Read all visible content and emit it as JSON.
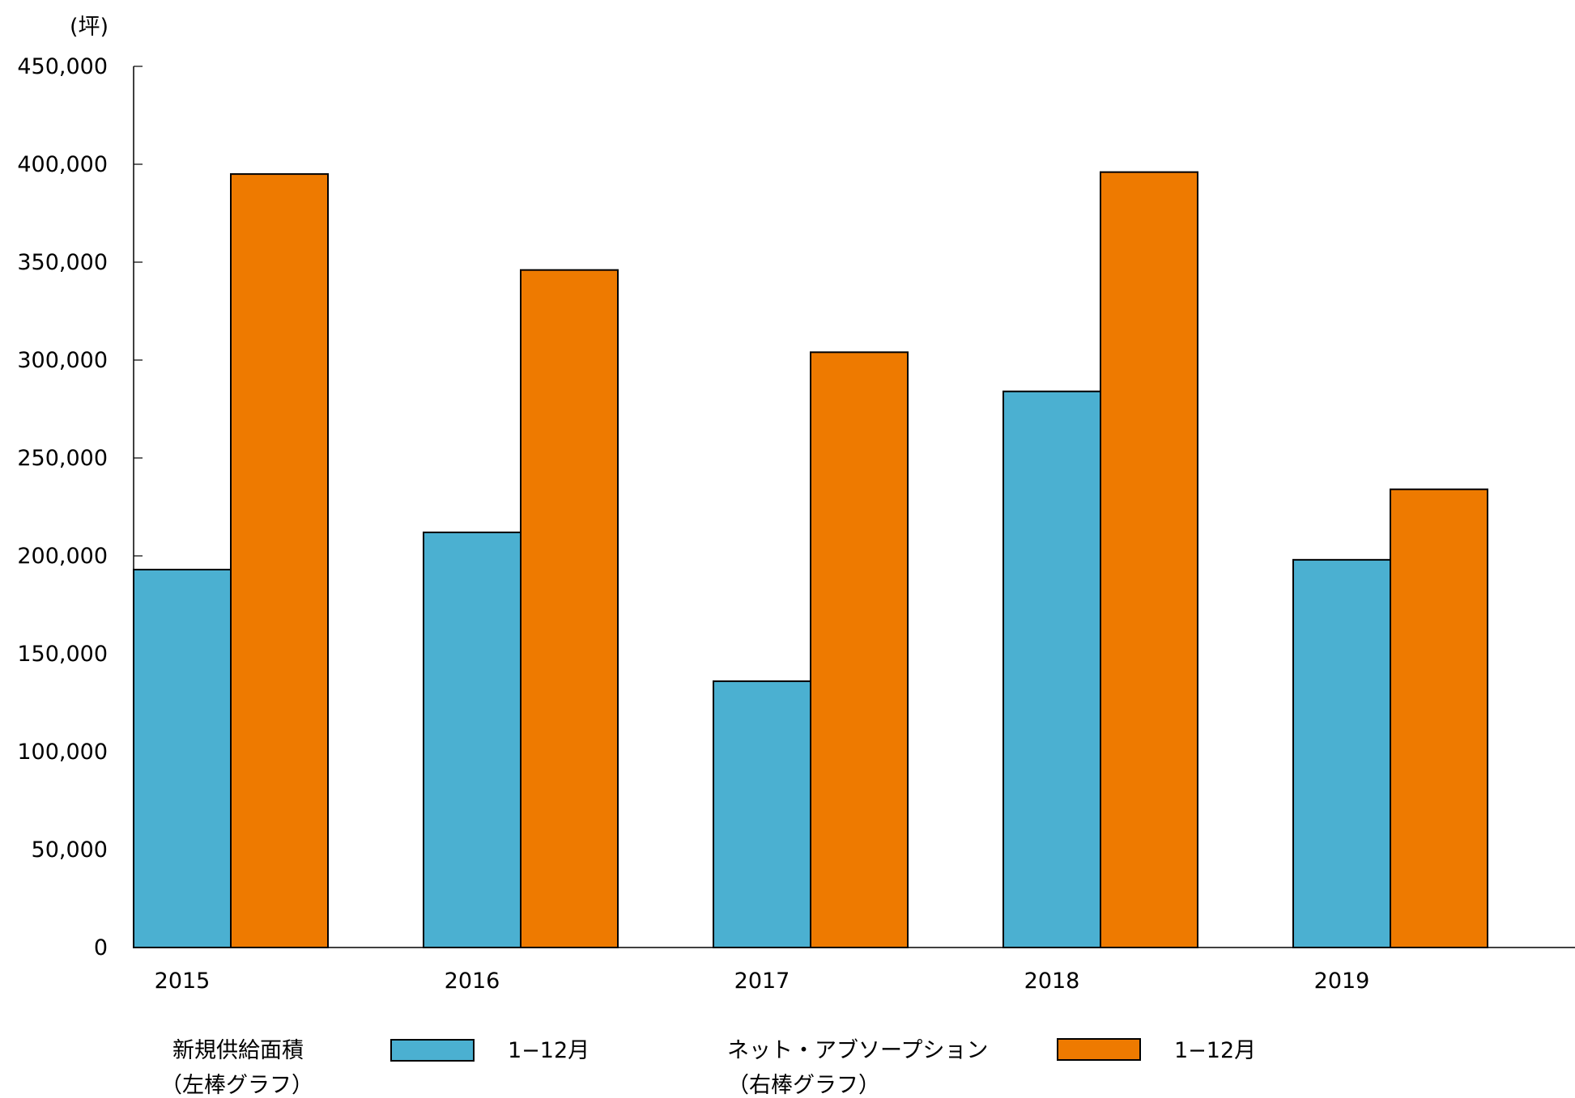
{
  "chart_data": {
    "type": "bar",
    "unit_label": "(坪)",
    "categories": [
      "2015",
      "2016",
      "2017",
      "2018",
      "2019"
    ],
    "ylim": [
      0,
      450000
    ],
    "yticks": [
      0,
      50000,
      100000,
      150000,
      200000,
      250000,
      300000,
      350000,
      400000,
      450000
    ],
    "ytick_labels": [
      "0",
      "50,000",
      "100,000",
      "150,000",
      "200,000",
      "250,000",
      "300,000",
      "350,000",
      "400,000",
      "450,000"
    ],
    "grid": false,
    "legend_position": "bottom",
    "series": [
      {
        "name": "新規供給面積",
        "name_sub": "（左棒グラフ）",
        "period": "1−12月",
        "color": "#4BB0D1",
        "values": [
          193000,
          212000,
          136000,
          284000,
          198000
        ]
      },
      {
        "name": "ネット・アブソープション",
        "name_sub": "（右棒グラフ）",
        "period": "1−12月",
        "color": "#EE7A00",
        "values": [
          395000,
          346000,
          304000,
          396000,
          234000
        ]
      }
    ]
  }
}
